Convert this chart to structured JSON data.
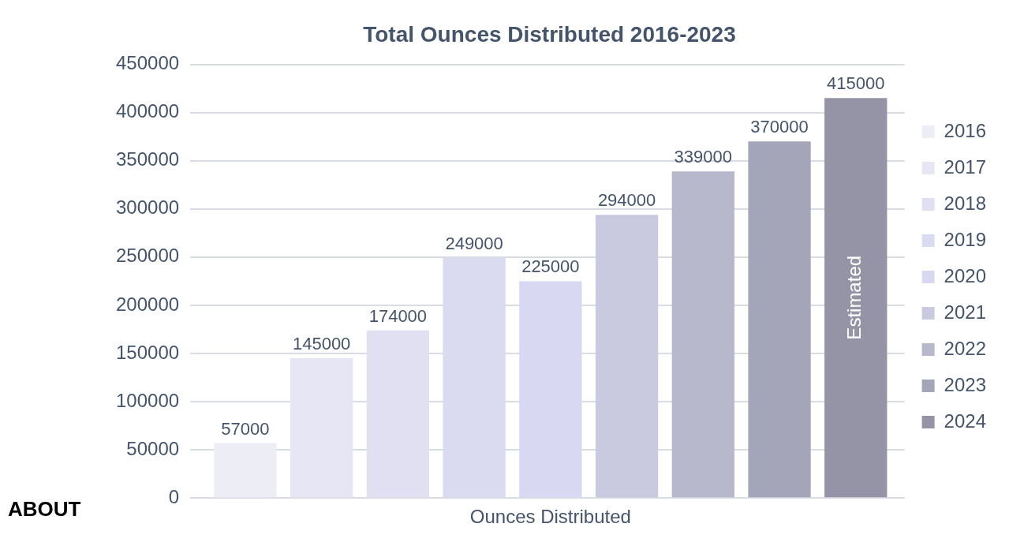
{
  "chart_data": {
    "type": "bar",
    "title": "Total Ounces Distributed 2016-2023",
    "categories": [
      "Ounces Distributed"
    ],
    "series": [
      {
        "name": "2016",
        "color": "#ededf5",
        "values": [
          57000
        ]
      },
      {
        "name": "2017",
        "color": "#e6e6f4",
        "values": [
          145000
        ]
      },
      {
        "name": "2018",
        "color": "#e0e0f2",
        "values": [
          174000
        ]
      },
      {
        "name": "2019",
        "color": "#dadaf0",
        "values": [
          249000
        ]
      },
      {
        "name": "2020",
        "color": "#d8d8f2",
        "values": [
          225000
        ]
      },
      {
        "name": "2021",
        "color": "#c9c9e0",
        "values": [
          294000
        ]
      },
      {
        "name": "2022",
        "color": "#b8b8cc",
        "values": [
          339000
        ]
      },
      {
        "name": "2023",
        "color": "#a5a5ba",
        "values": [
          370000
        ]
      },
      {
        "name": "2024",
        "color": "#9494a6",
        "values": [
          415000
        ]
      }
    ],
    "ylim": [
      0,
      450000
    ],
    "yticks": [
      0,
      50000,
      100000,
      150000,
      200000,
      250000,
      300000,
      350000,
      400000,
      450000
    ],
    "grid": "y",
    "legend": "right",
    "data_labels": true,
    "annotations": [
      "Estimated",
      "ABOUT"
    ]
  }
}
